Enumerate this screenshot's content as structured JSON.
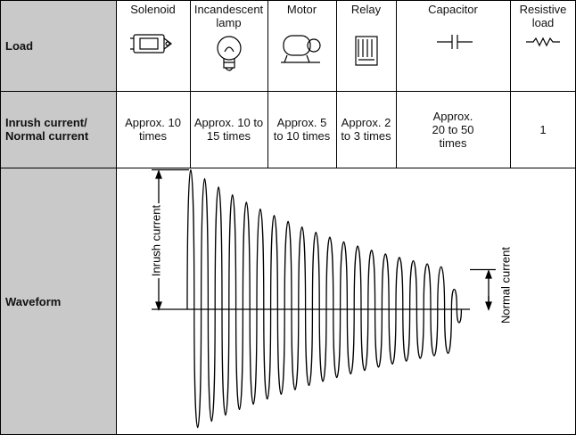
{
  "table": {
    "row_headers": [
      "Load",
      "Inrush current/ Normal current",
      "Waveform"
    ],
    "columns": [
      {
        "load": "Solenoid",
        "ratio": "Approx. 10 times"
      },
      {
        "load": "Incandescent lamp",
        "ratio": "Approx. 10 to 15 times"
      },
      {
        "load": "Motor",
        "ratio": "Approx. 5 to 10 times"
      },
      {
        "load": "Relay",
        "ratio": "Approx. 2 to 3 times"
      },
      {
        "load": "Capacitor",
        "ratio": "Approx. 20 to 50 times"
      },
      {
        "load": "Resistive load",
        "ratio": "1"
      }
    ],
    "waveform": {
      "inrush_label": "Inrush current",
      "normal_label": "Normal current"
    }
  }
}
